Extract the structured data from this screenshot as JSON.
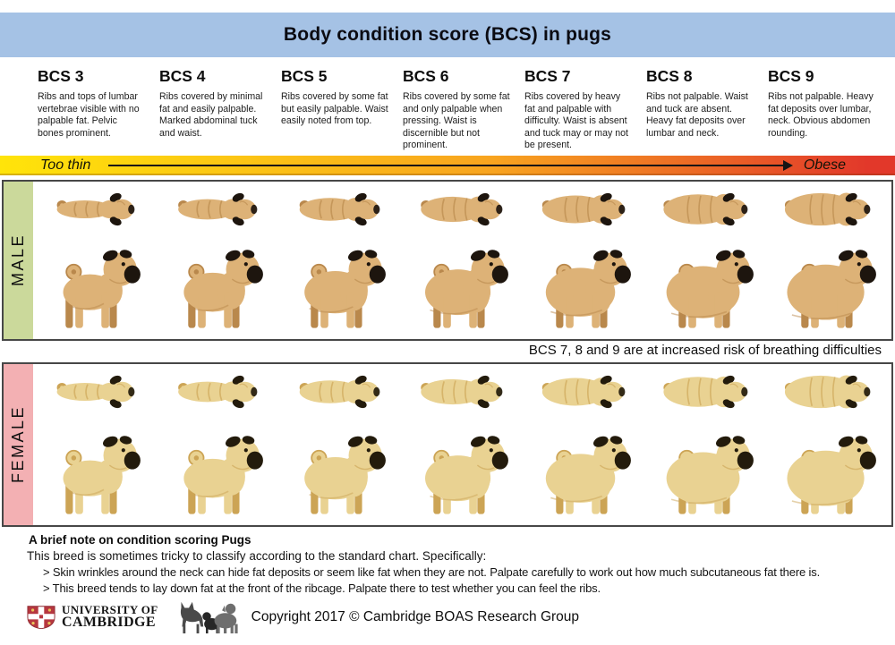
{
  "title": "Body condition score (BCS) in pugs",
  "bcs_columns": [
    {
      "label": "BCS 3",
      "description": "Ribs and tops of lumbar vertebrae visible with no palpable fat. Pelvic bones prominent."
    },
    {
      "label": "BCS 4",
      "description": "Ribs covered by minimal fat and easily palpable. Marked abdominal tuck and waist."
    },
    {
      "label": "BCS 5",
      "description": "Ribs covered by some fat but easily palpable. Waist easily noted from top."
    },
    {
      "label": "BCS 6",
      "description": "Ribs covered by some fat and only palpable when pressing. Waist is discernible but not prominent."
    },
    {
      "label": "BCS 7",
      "description": "Ribs covered by heavy fat and palpable with difficulty. Waist is absent and tuck may or may not be present."
    },
    {
      "label": "BCS 8",
      "description": "Ribs not palpable. Waist and tuck are absent. Heavy fat deposits over lumbar and neck."
    },
    {
      "label": "BCS 9",
      "description": "Ribs not palpable. Heavy fat deposits over lumbar, neck. Obvious abdomen rounding."
    }
  ],
  "scale": {
    "left_label": "Too thin",
    "right_label": "Obese",
    "gradient": [
      "#ffe40a",
      "#f8a41f",
      "#e2382a"
    ]
  },
  "sections": [
    {
      "label": "MALE",
      "strip_color": "#cbd99b",
      "pug_colors": {
        "body": "#ddb277",
        "shade": "#b9884c",
        "dark": "#1d150e"
      }
    },
    {
      "label": "FEMALE",
      "strip_color": "#f3b0b3",
      "pug_colors": {
        "body": "#e9d292",
        "shade": "#cca455",
        "dark": "#231b0c"
      }
    }
  ],
  "risk_note": "BCS 7, 8 and 9 are at increased risk of breathing difficulties",
  "note": {
    "heading": "A brief note on condition scoring Pugs",
    "intro": "This breed is sometimes tricky to classify according to the standard chart. Specifically:",
    "points": [
      "> Skin wrinkles around the neck can hide fat deposits or seem like fat when they are not. Palpate carefully to work out how much subcutaneous fat there is.",
      "> This breed tends to lay down fat at the front of the ribcage. Palpate there to test whether you can feel the ribs."
    ]
  },
  "footer": {
    "university_line1": "UNIVERSITY OF",
    "university_line2": "CAMBRIDGE",
    "copyright": "Copyright 2017 © Cambridge BOAS Research Group"
  },
  "colors": {
    "title_bar": "#a5c2e5",
    "section_border": "#474747"
  }
}
